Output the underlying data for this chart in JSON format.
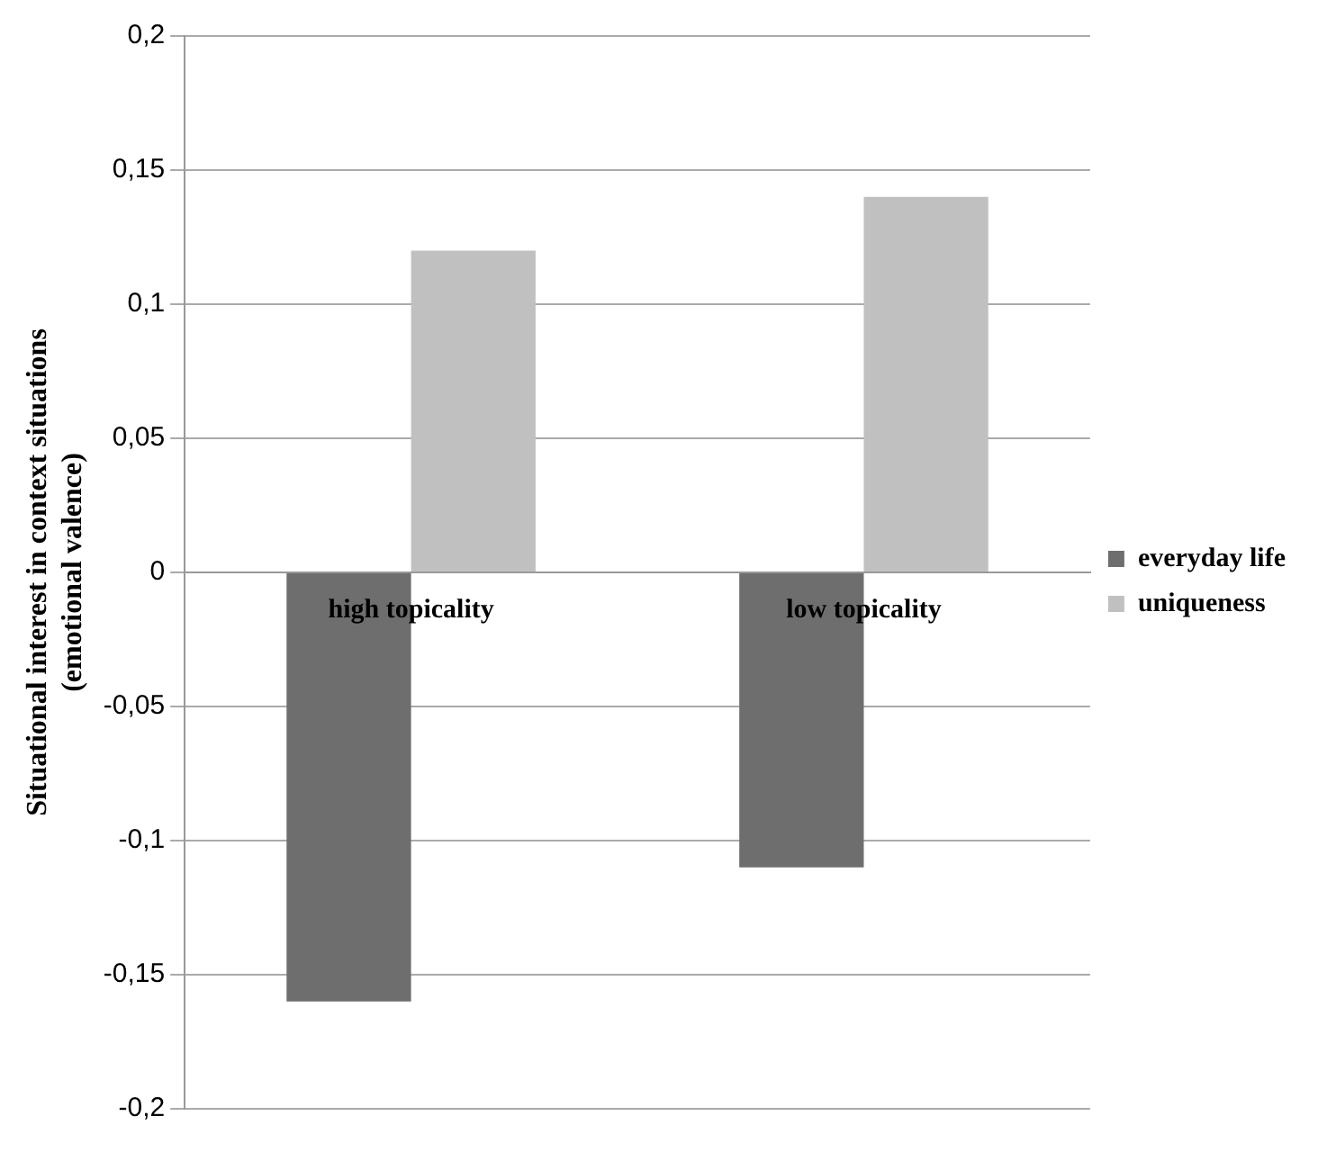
{
  "chart_data": {
    "type": "bar",
    "ylabel": "Situational interest in context situations\n(emotional valence)",
    "categories": [
      "high topicality",
      "low topicality"
    ],
    "series": [
      {
        "name": "everyday life",
        "color": "#6e6e6e",
        "values": [
          -0.16,
          -0.11
        ]
      },
      {
        "name": "uniqueness",
        "color": "#c0c0c0",
        "values": [
          0.12,
          0.14
        ]
      }
    ],
    "ylim": [
      -0.2,
      0.2
    ],
    "yticks": [
      {
        "value": -0.2,
        "label": "-0,2"
      },
      {
        "value": -0.15,
        "label": "-0,15"
      },
      {
        "value": -0.1,
        "label": "-0,1"
      },
      {
        "value": -0.05,
        "label": "-0,05"
      },
      0,
      {
        "value": 0.05,
        "label": "0,05"
      },
      {
        "value": 0.1,
        "label": "0,1"
      },
      {
        "value": 0.15,
        "label": "0,15"
      },
      {
        "value": 0.2,
        "label": "0,2"
      }
    ],
    "grid": "y",
    "legend": "right"
  }
}
